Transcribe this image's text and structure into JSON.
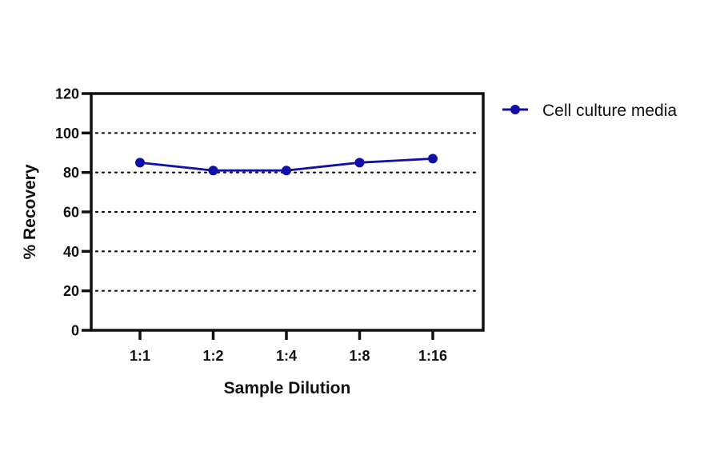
{
  "chart_data": {
    "type": "line",
    "title": "",
    "xlabel": "Sample Dilution",
    "ylabel": "% Recovery",
    "categories": [
      "1:1",
      "1:2",
      "1:4",
      "1:8",
      "1:16"
    ],
    "series": [
      {
        "name": "Cell culture media",
        "color": "#1010a8",
        "marker": "circle",
        "values": [
          85,
          81,
          81,
          85,
          87
        ]
      }
    ],
    "ylim": [
      0,
      120
    ],
    "yticks": [
      0,
      20,
      40,
      60,
      80,
      100,
      120
    ],
    "grid": {
      "horizontal": true,
      "style": "dotted",
      "at": [
        20,
        40,
        60,
        80,
        100
      ]
    },
    "legend_position": "right-top"
  }
}
